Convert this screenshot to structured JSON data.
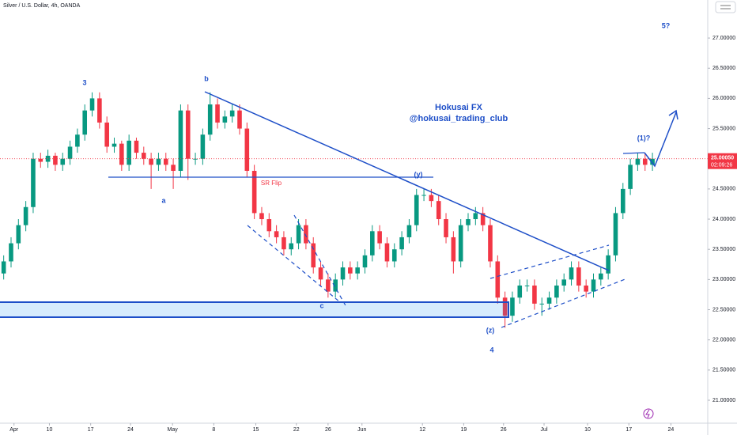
{
  "header": {
    "symbol": "Silver / U.S. Dollar, 4h, OANDA"
  },
  "chart_data": {
    "type": "candlestick",
    "open": [
      23.1,
      23.3,
      23.6,
      23.9,
      24.2,
      25.0,
      24.95,
      25.05,
      24.9,
      25.0,
      25.2,
      25.4,
      25.8,
      26.0,
      25.6,
      25.2,
      25.25,
      24.9,
      25.3,
      25.1,
      25.0,
      24.9,
      25.0,
      24.9,
      24.8,
      25.8,
      25.0,
      25.0,
      25.4,
      25.9,
      25.6,
      25.7,
      25.8,
      25.5,
      24.8,
      24.1,
      24.0,
      23.8,
      23.7,
      23.5,
      23.6,
      23.9,
      23.6,
      23.2,
      23.0,
      22.8,
      23.0,
      23.2,
      23.1,
      23.2,
      23.4,
      23.8,
      23.6,
      23.3,
      23.5,
      23.7,
      23.9,
      24.4,
      24.4,
      24.3,
      24.0,
      23.7,
      23.3,
      23.9,
      24.0,
      24.1,
      23.9,
      23.3,
      22.7,
      22.4,
      22.7,
      22.9,
      22.9,
      22.6,
      22.6,
      22.7,
      22.9,
      23.0,
      23.2,
      22.9,
      22.8,
      23.0,
      23.1,
      23.4,
      24.1,
      24.5,
      24.9,
      25.0,
      24.9
    ],
    "high": [
      23.4,
      23.7,
      24.0,
      24.3,
      25.1,
      25.1,
      25.15,
      25.1,
      25.1,
      25.3,
      25.5,
      25.9,
      26.1,
      26.1,
      25.7,
      25.35,
      25.3,
      25.4,
      25.35,
      25.2,
      25.1,
      25.1,
      25.1,
      25.0,
      25.9,
      25.9,
      25.1,
      25.5,
      26.1,
      26.0,
      25.8,
      25.9,
      25.9,
      25.6,
      24.9,
      24.2,
      24.1,
      23.9,
      23.8,
      23.7,
      24.0,
      24.0,
      23.7,
      23.3,
      23.1,
      23.1,
      23.3,
      23.3,
      23.3,
      23.5,
      23.9,
      23.9,
      23.7,
      23.6,
      23.8,
      24.0,
      24.5,
      24.5,
      24.5,
      24.4,
      24.1,
      23.8,
      24.0,
      24.1,
      24.2,
      24.2,
      24.0,
      23.4,
      22.8,
      22.8,
      23.0,
      23.0,
      23.0,
      22.7,
      22.8,
      23.0,
      23.1,
      23.3,
      23.3,
      23.0,
      23.1,
      23.2,
      23.5,
      24.2,
      24.6,
      25.0,
      25.1,
      25.1,
      25.1
    ],
    "low": [
      23.0,
      23.2,
      23.5,
      23.8,
      24.1,
      24.85,
      24.85,
      24.8,
      24.8,
      24.9,
      25.1,
      25.3,
      25.7,
      25.5,
      25.1,
      25.1,
      24.8,
      24.8,
      25.0,
      24.9,
      24.5,
      24.8,
      24.8,
      24.5,
      24.7,
      24.65,
      24.9,
      24.9,
      25.3,
      25.5,
      25.5,
      25.6,
      25.4,
      24.7,
      24.0,
      23.9,
      23.7,
      23.6,
      23.4,
      23.4,
      23.5,
      23.5,
      23.1,
      22.9,
      22.7,
      22.7,
      22.9,
      23.0,
      23.0,
      23.1,
      23.3,
      23.5,
      23.2,
      23.2,
      23.4,
      23.6,
      23.8,
      24.3,
      24.2,
      23.9,
      23.6,
      23.1,
      23.2,
      23.8,
      23.9,
      23.8,
      23.2,
      22.6,
      22.2,
      22.3,
      22.6,
      22.8,
      22.5,
      22.4,
      22.5,
      22.6,
      22.8,
      22.9,
      22.8,
      22.7,
      22.7,
      22.9,
      23.0,
      23.3,
      24.0,
      24.4,
      24.8,
      24.8,
      24.8
    ],
    "close": [
      23.3,
      23.6,
      23.9,
      24.2,
      25.0,
      24.95,
      25.05,
      24.9,
      25.0,
      25.2,
      25.4,
      25.8,
      26.0,
      25.6,
      25.2,
      25.25,
      24.9,
      25.3,
      25.1,
      25.0,
      24.9,
      25.0,
      24.9,
      24.8,
      25.8,
      25.0,
      25.0,
      25.4,
      25.9,
      25.6,
      25.7,
      25.8,
      25.5,
      24.8,
      24.1,
      24.0,
      23.8,
      23.7,
      23.5,
      23.6,
      23.9,
      23.6,
      23.2,
      23.0,
      22.8,
      23.0,
      23.2,
      23.1,
      23.2,
      23.4,
      23.8,
      23.6,
      23.3,
      23.5,
      23.7,
      23.9,
      24.4,
      24.4,
      24.3,
      24.0,
      23.7,
      23.3,
      23.9,
      24.0,
      24.1,
      23.9,
      23.3,
      22.7,
      22.4,
      22.7,
      22.9,
      22.9,
      22.6,
      22.6,
      22.7,
      22.9,
      23.0,
      23.2,
      22.9,
      22.8,
      23.0,
      23.1,
      23.4,
      24.1,
      24.5,
      24.9,
      25.0,
      24.9,
      25.0
    ],
    "up_color": "#089981",
    "down_color": "#f23645",
    "xlim": [
      -0.5,
      95.5
    ],
    "xticks": [
      {
        "value": 1.4,
        "label": "Apr"
      },
      {
        "value": 6.2,
        "label": "10"
      },
      {
        "value": 11.8,
        "label": "17"
      },
      {
        "value": 17.2,
        "label": "24"
      },
      {
        "value": 22.9,
        "label": "May"
      },
      {
        "value": 28.5,
        "label": "8"
      },
      {
        "value": 34.2,
        "label": "15"
      },
      {
        "value": 39.7,
        "label": "22"
      },
      {
        "value": 44.0,
        "label": "26"
      },
      {
        "value": 48.6,
        "label": "Jun"
      },
      {
        "value": 56.8,
        "label": "12"
      },
      {
        "value": 62.4,
        "label": "19"
      },
      {
        "value": 67.8,
        "label": "26"
      },
      {
        "value": 73.3,
        "label": "Jul"
      },
      {
        "value": 79.2,
        "label": "10"
      },
      {
        "value": 84.8,
        "label": "17"
      },
      {
        "value": 90.5,
        "label": "24"
      }
    ],
    "ylim": [
      20.62,
      27.63
    ],
    "yticks": [
      {
        "value": 21,
        "label": "21.00000"
      },
      {
        "value": 21.5,
        "label": "21.50000"
      },
      {
        "value": 22,
        "label": "22.00000"
      },
      {
        "value": 22.5,
        "label": "22.50000"
      },
      {
        "value": 23,
        "label": "23.00000"
      },
      {
        "value": 23.5,
        "label": "23.50000"
      },
      {
        "value": 24,
        "label": "24.00000"
      },
      {
        "value": 24.5,
        "label": "24.50000"
      },
      {
        "value": 25,
        "label": "25.00000"
      },
      {
        "value": 25.5,
        "label": "25.50000"
      },
      {
        "value": 26,
        "label": "26.00000"
      },
      {
        "value": 26.5,
        "label": "26.50000"
      },
      {
        "value": 27,
        "label": "27.00000"
      }
    ],
    "last_price": {
      "value": 25.0005,
      "label": "25.00050"
    },
    "countdown": "02:09:26",
    "annotations": {
      "wave_3": "3",
      "wave_b": "b",
      "wave_a": "a",
      "wave_c": "c",
      "wave_y": "(y)",
      "wave_z": "(z)",
      "wave_4": "4",
      "wave_1": "(1)?",
      "wave_5": "5?",
      "brand": "Hokusai FX",
      "handle": "@hokusai_trading_club",
      "sr_flip": "SR Flip"
    }
  }
}
